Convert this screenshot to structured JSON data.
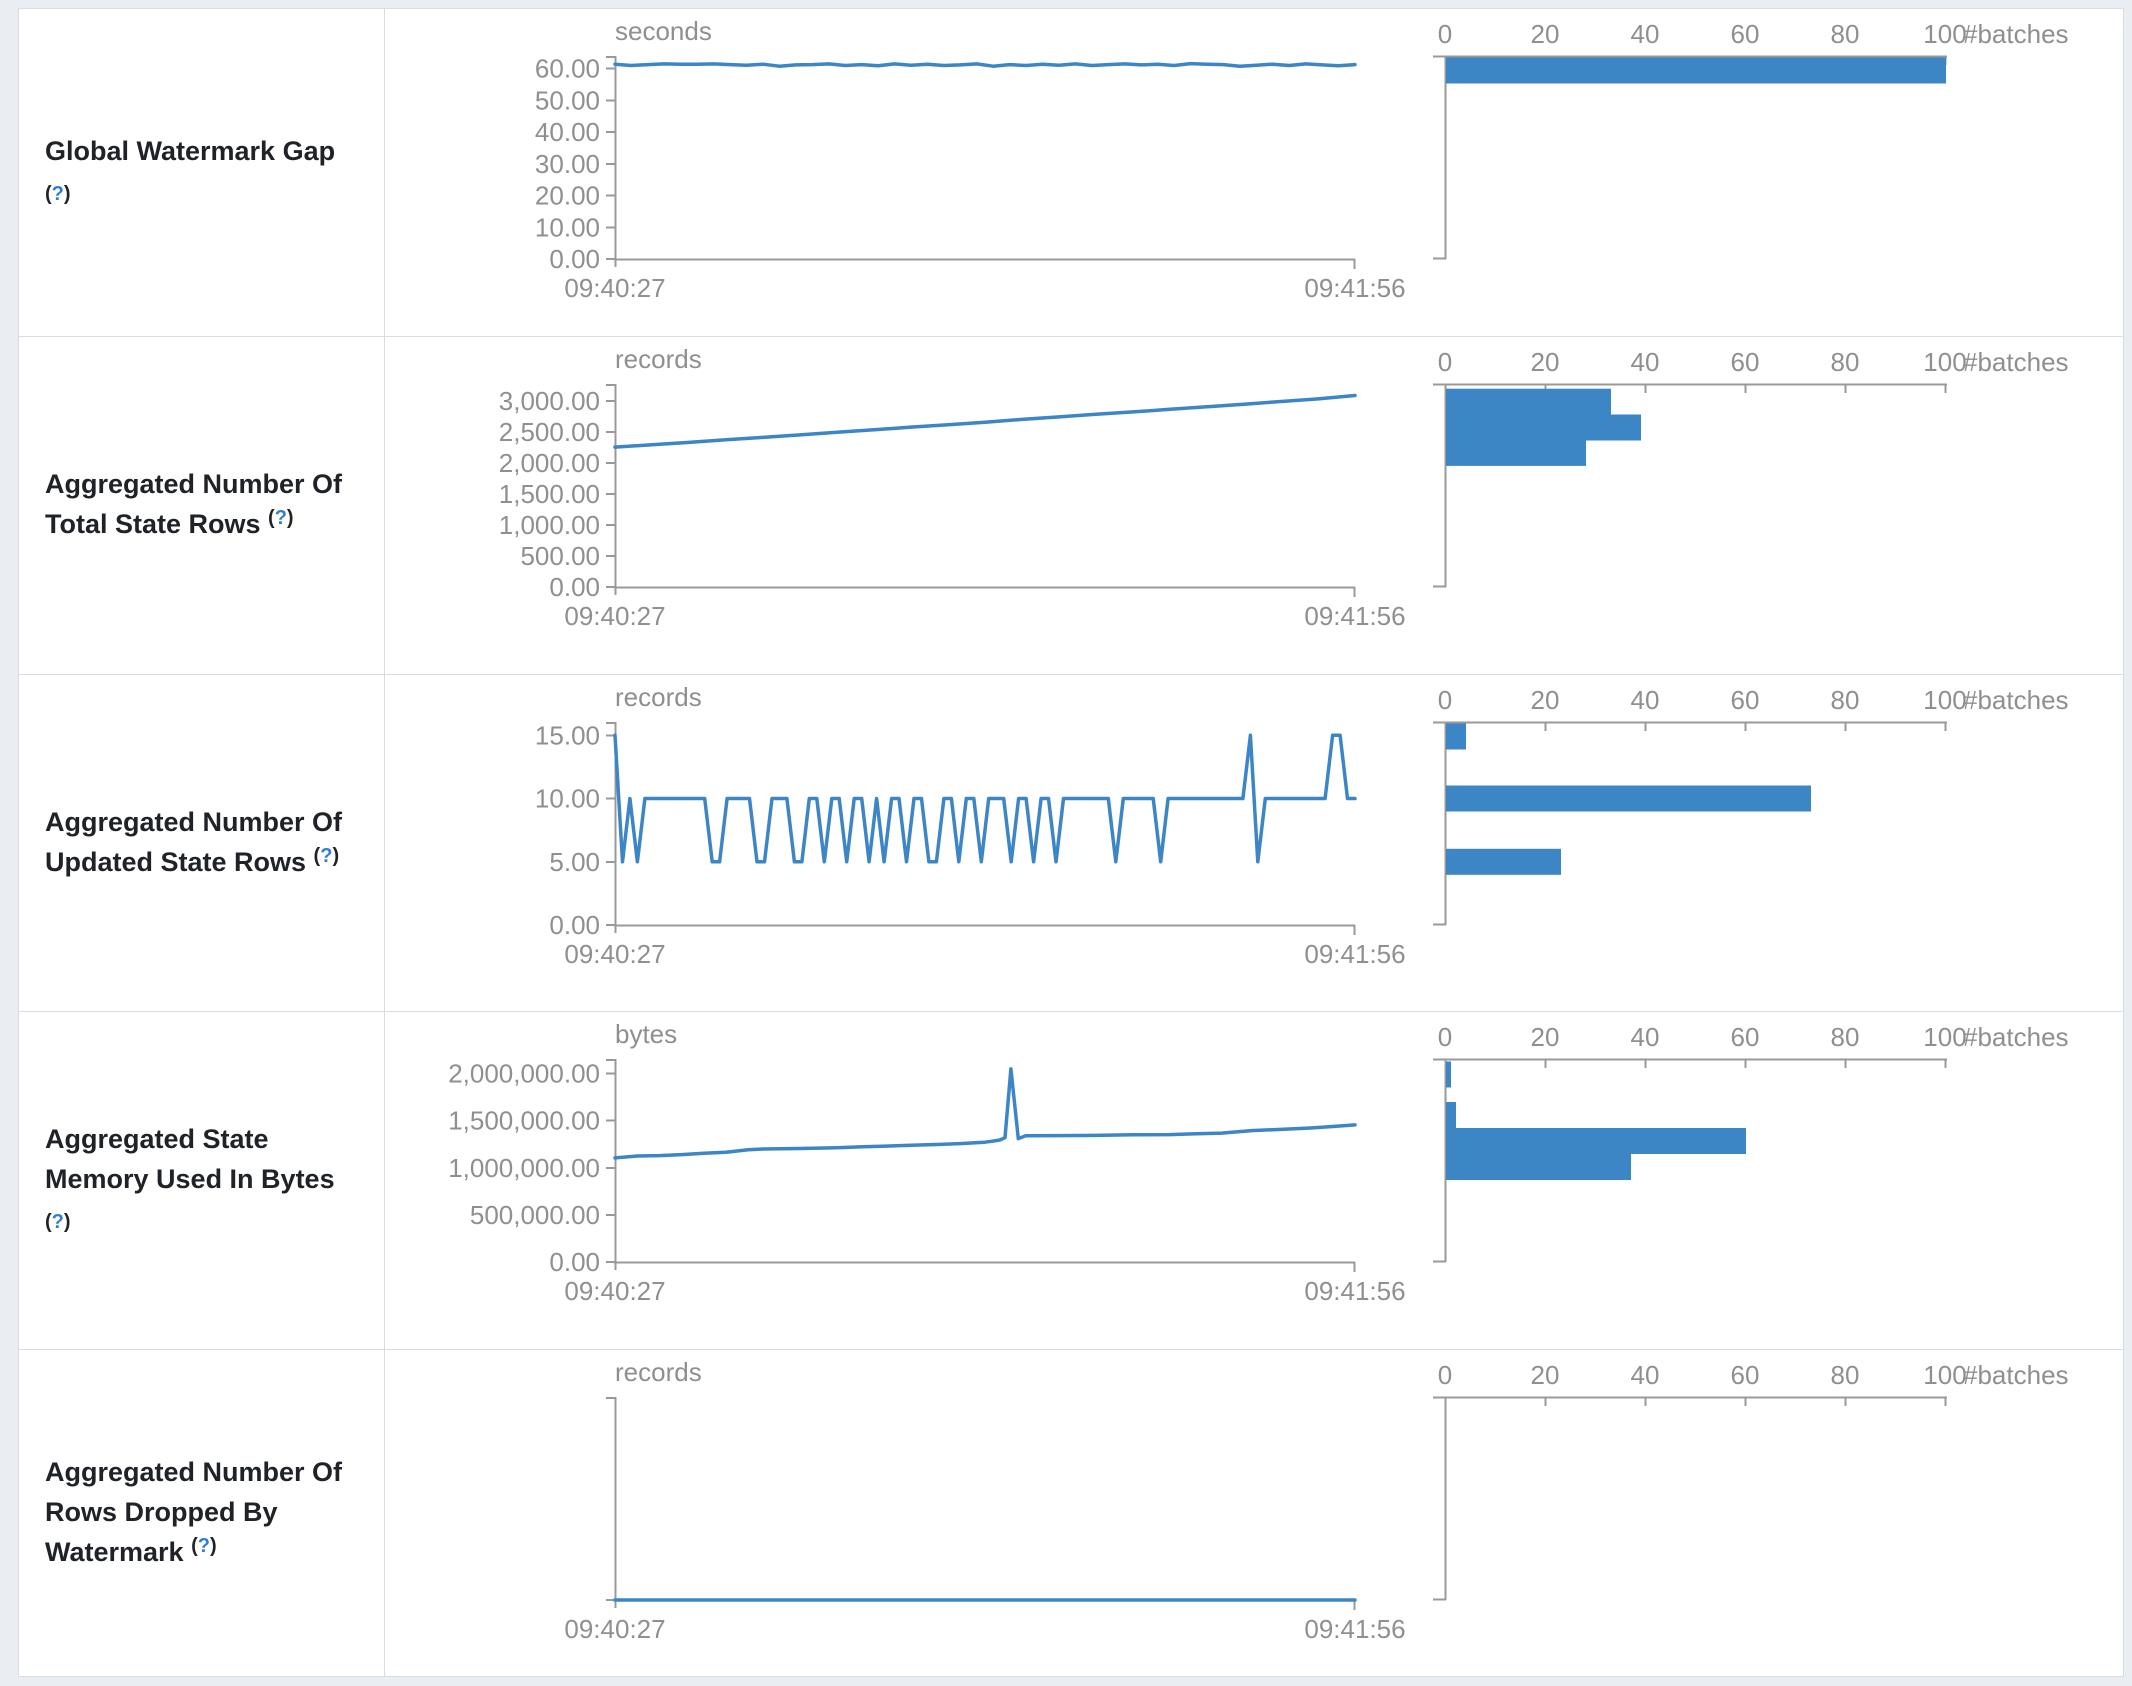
{
  "page": {
    "background": "#eaedf1",
    "table_border": "#d9dde2",
    "accent_blue": "#3d86c5",
    "axis_gray": "#999999",
    "tick_text_gray": "#8f8f8f",
    "label_text": "#1f2328",
    "help_link_blue": "#2f7fd1",
    "help_marker": "(?)"
  },
  "rows": [
    {
      "label_lines": [
        "Global Watermark Gap",
        "(?)"
      ]
    },
    {
      "label_lines": [
        "Aggregated Number Of",
        "Total State Rows (?)"
      ]
    },
    {
      "label_lines": [
        "Aggregated Number Of",
        "Updated State Rows (?)"
      ]
    },
    {
      "label_lines": [
        "Aggregated State",
        "Memory Used In Bytes",
        "(?)"
      ]
    },
    {
      "label_lines": [
        "Aggregated Number Of",
        "Rows Dropped By",
        "Watermark (?)"
      ]
    }
  ],
  "chart_data": [
    {
      "row": "Global Watermark Gap",
      "timeline": {
        "type": "line",
        "unit": "seconds",
        "x_start": "09:40:27",
        "x_end": "09:41:56",
        "ymax": 64,
        "yticks": [
          [
            0,
            "0.00"
          ],
          [
            10,
            "10.00"
          ],
          [
            20,
            "20.00"
          ],
          [
            30,
            "30.00"
          ],
          [
            40,
            "40.00"
          ],
          [
            50,
            "50.00"
          ],
          [
            60,
            "60.00"
          ]
        ],
        "values": [
          61.4,
          61.0,
          61.3,
          61.5,
          61.4,
          61.4,
          61.5,
          61.3,
          61.1,
          61.4,
          60.8,
          61.2,
          61.3,
          61.5,
          61.0,
          61.3,
          60.9,
          61.5,
          61.1,
          61.4,
          61.0,
          61.2,
          61.5,
          60.8,
          61.3,
          61.0,
          61.4,
          61.1,
          61.5,
          61.0,
          61.3,
          61.5,
          61.2,
          61.4,
          61.0,
          61.6,
          61.4,
          61.3,
          60.8,
          61.1,
          61.4,
          61.0,
          61.5,
          61.2,
          60.9,
          61.3
        ]
      },
      "histogram": {
        "type": "bar-horizontal",
        "axis_label": "#batches",
        "xlim": [
          0,
          100
        ],
        "ticks": [
          [
            0,
            "0"
          ],
          [
            20,
            "20"
          ],
          [
            40,
            "40"
          ],
          [
            60,
            "60"
          ],
          [
            80,
            "80"
          ],
          [
            100,
            "100"
          ]
        ],
        "bars": [
          [
            60,
            100
          ]
        ]
      }
    },
    {
      "row": "Aggregated Number Of Total State Rows",
      "timeline": {
        "type": "line",
        "unit": "records",
        "x_start": "09:40:27",
        "x_end": "09:41:56",
        "ymax": 3270,
        "yticks": [
          [
            0,
            "0.00"
          ],
          [
            500,
            "500.00"
          ],
          [
            1000,
            "1,000.00"
          ],
          [
            1500,
            "1,500.00"
          ],
          [
            2000,
            "2,000.00"
          ],
          [
            2500,
            "2,500.00"
          ],
          [
            3000,
            "3,000.00"
          ]
        ],
        "values": [
          2253,
          2290,
          2330,
          2372,
          2410,
          2450,
          2492,
          2532,
          2575,
          2612,
          2655,
          2700,
          2740,
          2782,
          2820,
          2862,
          2905,
          2945,
          2988,
          3030,
          3085
        ]
      },
      "histogram": {
        "type": "bar-horizontal",
        "axis_label": "#batches",
        "xlim": [
          0,
          100
        ],
        "ticks": [
          [
            0,
            "0"
          ],
          [
            20,
            "20"
          ],
          [
            40,
            "40"
          ],
          [
            60,
            "60"
          ],
          [
            80,
            "80"
          ],
          [
            100,
            "100"
          ]
        ],
        "bars": [
          [
            2985,
            33
          ],
          [
            2570,
            39
          ],
          [
            2160,
            28
          ]
        ]
      }
    },
    {
      "row": "Aggregated Number Of Updated State Rows",
      "timeline": {
        "type": "line",
        "unit": "records",
        "x_start": "09:40:27",
        "x_end": "09:41:56",
        "ymax": 16.05,
        "yticks": [
          [
            0,
            "0.00"
          ],
          [
            5,
            "5.00"
          ],
          [
            10,
            "10.00"
          ],
          [
            15,
            "15.00"
          ]
        ],
        "values": [
          15,
          5,
          10,
          5,
          10,
          10,
          10,
          10,
          10,
          10,
          10,
          10,
          10,
          5,
          5,
          10,
          10,
          10,
          10,
          5,
          5,
          10,
          10,
          10,
          5,
          5,
          10,
          10,
          5,
          10,
          10,
          5,
          10,
          10,
          5,
          10,
          5,
          10,
          10,
          5,
          10,
          10,
          5,
          5,
          10,
          10,
          5,
          10,
          10,
          5,
          10,
          10,
          10,
          5,
          10,
          10,
          5,
          10,
          10,
          5,
          10,
          10,
          10,
          10,
          10,
          10,
          10,
          5,
          10,
          10,
          10,
          10,
          10,
          5,
          10,
          10,
          10,
          10,
          10,
          10,
          10,
          10,
          10,
          10,
          10,
          15,
          5,
          10,
          10,
          10,
          10,
          10,
          10,
          10,
          10,
          10,
          15,
          15,
          10,
          10
        ]
      },
      "histogram": {
        "type": "bar-horizontal",
        "axis_label": "#batches",
        "xlim": [
          0,
          100
        ],
        "ticks": [
          [
            0,
            "0"
          ],
          [
            20,
            "20"
          ],
          [
            40,
            "40"
          ],
          [
            60,
            "60"
          ],
          [
            80,
            "80"
          ],
          [
            100,
            "100"
          ]
        ],
        "bars": [
          [
            15,
            4
          ],
          [
            10,
            73
          ],
          [
            5,
            23
          ]
        ]
      }
    },
    {
      "row": "Aggregated State Memory Used In Bytes",
      "timeline": {
        "type": "line",
        "unit": "bytes",
        "x_start": "09:40:27",
        "x_end": "09:41:56",
        "ymax": 2155000,
        "yticks": [
          [
            0,
            "0.00"
          ],
          [
            500000,
            "500,000.00"
          ],
          [
            1000000,
            "1,000,000.00"
          ],
          [
            1500000,
            "1,500,000.00"
          ],
          [
            2000000,
            "2,000,000.00"
          ]
        ],
        "points": [
          [
            0,
            1105000
          ],
          [
            0.03,
            1125000
          ],
          [
            0.06,
            1130000
          ],
          [
            0.09,
            1140000
          ],
          [
            0.12,
            1155000
          ],
          [
            0.15,
            1165000
          ],
          [
            0.18,
            1192000
          ],
          [
            0.2,
            1200000
          ],
          [
            0.25,
            1205000
          ],
          [
            0.3,
            1212000
          ],
          [
            0.33,
            1222000
          ],
          [
            0.36,
            1228000
          ],
          [
            0.4,
            1240000
          ],
          [
            0.44,
            1248000
          ],
          [
            0.47,
            1258000
          ],
          [
            0.49,
            1268000
          ],
          [
            0.5,
            1272000
          ],
          [
            0.51,
            1282000
          ],
          [
            0.52,
            1295000
          ],
          [
            0.527,
            1320000
          ],
          [
            0.535,
            2050000
          ],
          [
            0.545,
            1310000
          ],
          [
            0.555,
            1340000
          ],
          [
            0.6,
            1342000
          ],
          [
            0.65,
            1344000
          ],
          [
            0.7,
            1350000
          ],
          [
            0.75,
            1352000
          ],
          [
            0.78,
            1360000
          ],
          [
            0.82,
            1368000
          ],
          [
            0.86,
            1395000
          ],
          [
            0.9,
            1408000
          ],
          [
            0.94,
            1422000
          ],
          [
            0.97,
            1438000
          ],
          [
            1,
            1455000
          ]
        ]
      },
      "histogram": {
        "type": "bar-horizontal",
        "axis_label": "#batches",
        "xlim": [
          0,
          100
        ],
        "ticks": [
          [
            0,
            "0"
          ],
          [
            20,
            "20"
          ],
          [
            40,
            "40"
          ],
          [
            60,
            "60"
          ],
          [
            80,
            "80"
          ],
          [
            100,
            "100"
          ]
        ],
        "bars": [
          [
            1990000,
            1
          ],
          [
            1560000,
            2
          ],
          [
            1284000,
            60
          ],
          [
            1008000,
            37
          ]
        ]
      }
    },
    {
      "row": "Aggregated Number Of Rows Dropped By Watermark",
      "timeline": {
        "type": "line",
        "unit": "records",
        "x_start": "09:40:27",
        "x_end": "09:41:56",
        "ymax": 1,
        "yticks": [
          [
            0,
            ""
          ]
        ],
        "values": [
          0,
          0
        ]
      },
      "histogram": {
        "type": "bar-horizontal",
        "axis_label": "#batches",
        "xlim": [
          0,
          100
        ],
        "ticks": [
          [
            0,
            "0"
          ],
          [
            20,
            "20"
          ],
          [
            40,
            "40"
          ],
          [
            60,
            "60"
          ],
          [
            80,
            "80"
          ],
          [
            100,
            "100"
          ]
        ],
        "bars": []
      }
    }
  ]
}
